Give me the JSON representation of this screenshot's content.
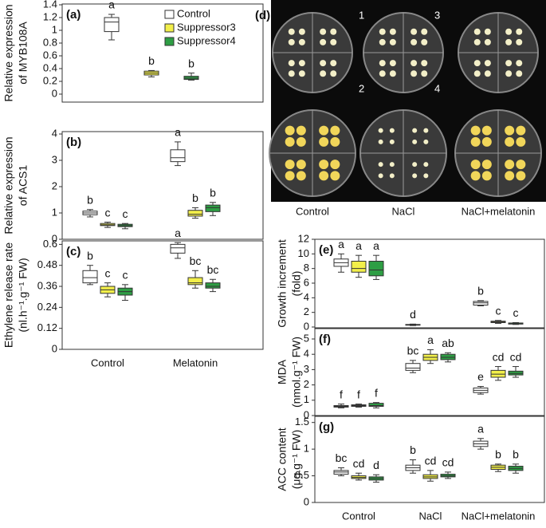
{
  "chart_data": [
    {
      "type": "box",
      "label": "(a)",
      "ylabel": [
        "Relative expression",
        "of MYB108A"
      ],
      "ylim": [
        0,
        1.4
      ],
      "yticks": [
        0,
        0.2,
        0.4,
        0.6,
        0.8,
        1,
        1.2,
        1.4
      ],
      "categories": [
        null
      ],
      "legend": "upper right",
      "series": [
        {
          "name": "Control",
          "color": "#ffffff",
          "values": [
            [
              0.85,
              0.98,
              1.13,
              1.2,
              1.25
            ]
          ],
          "letters": [
            "a"
          ]
        },
        {
          "name": "Suppressor3",
          "color": "#f2ef4a",
          "values": [
            [
              0.27,
              0.3,
              0.33,
              0.36,
              0.37
            ]
          ],
          "letters": [
            "b"
          ]
        },
        {
          "name": "Suppressor4",
          "color": "#2e9e44",
          "values": [
            [
              0.22,
              0.23,
              0.25,
              0.28,
              0.33
            ]
          ],
          "letters": [
            "b"
          ]
        }
      ]
    },
    {
      "type": "box",
      "label": "(b)",
      "ylabel": [
        "Relative expression",
        "of ACS1"
      ],
      "ylim": [
        0,
        4
      ],
      "yticks": [
        0,
        1,
        2,
        3,
        4
      ],
      "categories": [
        null,
        null
      ],
      "series": [
        {
          "color": "#ffffff",
          "values": [
            [
              0.85,
              0.93,
              1,
              1.07,
              1.13
            ],
            [
              2.8,
              2.95,
              3.1,
              3.4,
              3.7
            ]
          ],
          "letters": [
            "b",
            "a"
          ]
        },
        {
          "color": "#f2ef4a",
          "values": [
            [
              0.45,
              0.52,
              0.55,
              0.6,
              0.65
            ],
            [
              0.8,
              0.88,
              0.95,
              1.1,
              1.2
            ]
          ],
          "letters": [
            "c",
            "b"
          ]
        },
        {
          "color": "#2e9e44",
          "values": [
            [
              0.4,
              0.48,
              0.52,
              0.57,
              0.6
            ],
            [
              0.9,
              1.05,
              1.2,
              1.3,
              1.4
            ]
          ],
          "letters": [
            "c",
            "b"
          ]
        }
      ]
    },
    {
      "type": "box",
      "label": "(c)",
      "ylabel": [
        "Ethylene release rate",
        "(nl.h⁻¹.g⁻¹ FW)"
      ],
      "ylim": [
        0,
        0.62
      ],
      "yticks": [
        0,
        0.12,
        0.24,
        0.36,
        0.48,
        0.6
      ],
      "categories": [
        "Control",
        "Melatonin"
      ],
      "series": [
        {
          "color": "#ffffff",
          "values": [
            [
              0.37,
              0.38,
              0.41,
              0.45,
              0.48
            ],
            [
              0.52,
              0.55,
              0.58,
              0.6,
              0.61
            ]
          ],
          "letters": [
            "b",
            "a"
          ]
        },
        {
          "color": "#f2ef4a",
          "values": [
            [
              0.3,
              0.32,
              0.34,
              0.36,
              0.38
            ],
            [
              0.35,
              0.37,
              0.38,
              0.41,
              0.45
            ]
          ],
          "letters": [
            "c",
            "bc"
          ]
        },
        {
          "color": "#2e9e44",
          "values": [
            [
              0.28,
              0.31,
              0.33,
              0.35,
              0.37
            ],
            [
              0.33,
              0.35,
              0.36,
              0.38,
              0.4
            ]
          ],
          "letters": [
            "c",
            "bc"
          ]
        }
      ]
    },
    {
      "type": "box",
      "label": "(e)",
      "ylabel": [
        "Growth increment",
        "(fold)"
      ],
      "ylim": [
        0,
        12
      ],
      "yticks": [
        0,
        2,
        4,
        6,
        8,
        10,
        12
      ],
      "categories": [
        null,
        null,
        null
      ],
      "series": [
        {
          "color": "#ffffff",
          "values": [
            [
              7.5,
              8.3,
              8.8,
              9.3,
              10
            ],
            [
              0.2,
              0.25,
              0.3,
              0.35,
              0.4
            ],
            [
              2.9,
              3,
              3.3,
              3.5,
              3.6
            ]
          ],
          "letters": [
            "a",
            "d",
            "b"
          ]
        },
        {
          "color": "#f2ef4a",
          "values": [
            [
              6.8,
              7.5,
              8,
              9,
              9.8
            ],
            null,
            [
              0.5,
              0.6,
              0.7,
              0.8,
              0.9
            ]
          ],
          "letters": [
            "a",
            null,
            "c"
          ]
        },
        {
          "color": "#2e9e44",
          "values": [
            [
              6.5,
              7,
              7.8,
              9,
              9.8
            ],
            null,
            [
              0.35,
              0.4,
              0.5,
              0.55,
              0.6
            ]
          ],
          "letters": [
            "a",
            null,
            "c"
          ]
        }
      ]
    },
    {
      "type": "box",
      "label": "(f)",
      "ylabel": [
        "MDA",
        "(nmol.g⁻¹ FW)"
      ],
      "ylim": [
        0,
        5
      ],
      "yticks": [
        0,
        1,
        2,
        3,
        4,
        5
      ],
      "categories": [
        null,
        null,
        null
      ],
      "series": [
        {
          "color": "#ffffff",
          "values": [
            [
              0.5,
              0.55,
              0.6,
              0.65,
              0.75
            ],
            [
              2.8,
              2.95,
              3.1,
              3.4,
              3.6
            ],
            [
              1.4,
              1.5,
              1.65,
              1.8,
              1.9
            ]
          ],
          "letters": [
            "f",
            "bc",
            "e"
          ]
        },
        {
          "color": "#f2ef4a",
          "values": [
            [
              0.55,
              0.6,
              0.65,
              0.7,
              0.75
            ],
            [
              3.4,
              3.6,
              3.8,
              4,
              4.3
            ],
            [
              2.3,
              2.5,
              2.7,
              2.95,
              3.2
            ]
          ],
          "letters": [
            "f",
            "a",
            "cd"
          ]
        },
        {
          "color": "#2e9e44",
          "values": [
            [
              0.5,
              0.6,
              0.65,
              0.8,
              0.85
            ],
            [
              3.5,
              3.65,
              3.8,
              4,
              4.1
            ],
            [
              2.5,
              2.65,
              2.75,
              2.9,
              3.2
            ]
          ],
          "letters": [
            "f",
            "ab",
            "cd"
          ]
        }
      ]
    },
    {
      "type": "box",
      "label": "(g)",
      "ylabel": [
        "ACC content",
        "(μg.g⁻¹ FW)"
      ],
      "ylim": [
        0,
        1.6
      ],
      "yticks": [
        0,
        0.5,
        1,
        1.5
      ],
      "categories": [
        "Control",
        "NaCl",
        "NaCl+melatonin"
      ],
      "series": [
        {
          "color": "#ffffff",
          "values": [
            [
              0.5,
              0.53,
              0.57,
              0.6,
              0.65
            ],
            [
              0.55,
              0.6,
              0.65,
              0.7,
              0.8
            ],
            [
              1,
              1.05,
              1.1,
              1.15,
              1.2
            ]
          ],
          "letters": [
            "bc",
            "b",
            "a"
          ]
        },
        {
          "color": "#f2ef4a",
          "values": [
            [
              0.42,
              0.45,
              0.47,
              0.5,
              0.55
            ],
            [
              0.4,
              0.45,
              0.48,
              0.52,
              0.6
            ],
            [
              0.58,
              0.62,
              0.66,
              0.7,
              0.72
            ]
          ],
          "letters": [
            "cd",
            "cd",
            "b"
          ]
        },
        {
          "color": "#2e9e44",
          "values": [
            [
              0.38,
              0.42,
              0.45,
              0.48,
              0.52
            ],
            [
              0.45,
              0.48,
              0.5,
              0.53,
              0.57
            ],
            [
              0.55,
              0.6,
              0.64,
              0.68,
              0.72
            ]
          ],
          "letters": [
            "d",
            "cd",
            "b"
          ]
        }
      ]
    }
  ],
  "photo": {
    "label": "(d)",
    "quadrant_numbers": [
      "1",
      "3",
      "2",
      "4"
    ],
    "captions": [
      "Control",
      "NaCl",
      "NaCl+melatonin"
    ]
  }
}
